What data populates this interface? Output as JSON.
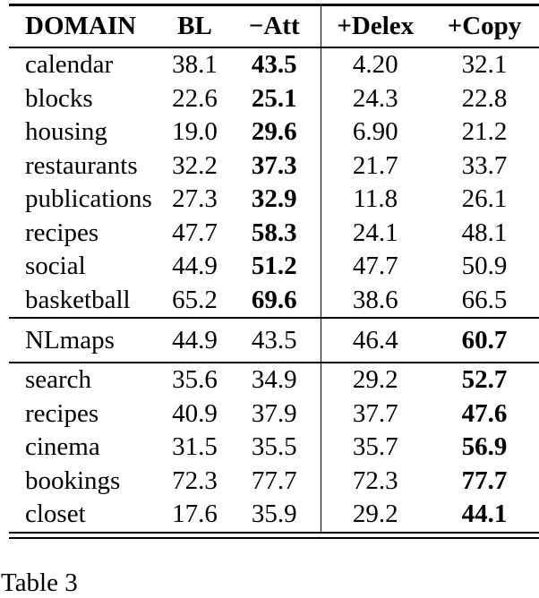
{
  "caption": "Table 3",
  "table": {
    "columns": [
      "DOMAIN",
      "BL",
      "−Att",
      "+Delex",
      "+Copy"
    ],
    "sections": [
      {
        "rows": [
          {
            "domain": "calendar",
            "values": [
              "38.1",
              "43.5",
              "4.20",
              "32.1"
            ],
            "bold": 1
          },
          {
            "domain": "blocks",
            "values": [
              "22.6",
              "25.1",
              "24.3",
              "22.8"
            ],
            "bold": 1
          },
          {
            "domain": "housing",
            "values": [
              "19.0",
              "29.6",
              "6.90",
              "21.2"
            ],
            "bold": 1
          },
          {
            "domain": "restaurants",
            "values": [
              "32.2",
              "37.3",
              "21.7",
              "33.7"
            ],
            "bold": 1
          },
          {
            "domain": "publications",
            "values": [
              "27.3",
              "32.9",
              "11.8",
              "26.1"
            ],
            "bold": 1
          },
          {
            "domain": "recipes",
            "values": [
              "47.7",
              "58.3",
              "24.1",
              "48.1"
            ],
            "bold": 1
          },
          {
            "domain": "social",
            "values": [
              "44.9",
              "51.2",
              "47.7",
              "50.9"
            ],
            "bold": 1
          },
          {
            "domain": "basketball",
            "values": [
              "65.2",
              "69.6",
              "38.6",
              "66.5"
            ],
            "bold": 1
          }
        ]
      },
      {
        "rows": [
          {
            "domain": "NLmaps",
            "values": [
              "44.9",
              "43.5",
              "46.4",
              "60.7"
            ],
            "bold": 3
          }
        ]
      },
      {
        "rows": [
          {
            "domain": "search",
            "values": [
              "35.6",
              "34.9",
              "29.2",
              "52.7"
            ],
            "bold": 3
          },
          {
            "domain": "recipes",
            "values": [
              "40.9",
              "37.9",
              "37.7",
              "47.6"
            ],
            "bold": 3
          },
          {
            "domain": "cinema",
            "values": [
              "31.5",
              "35.5",
              "35.7",
              "56.9"
            ],
            "bold": 3
          },
          {
            "domain": "bookings",
            "values": [
              "72.3",
              "77.7",
              "72.3",
              "77.7"
            ],
            "bold": 3
          },
          {
            "domain": "closet",
            "values": [
              "17.6",
              "35.9",
              "29.2",
              "44.1"
            ],
            "bold": 3
          }
        ]
      }
    ]
  }
}
